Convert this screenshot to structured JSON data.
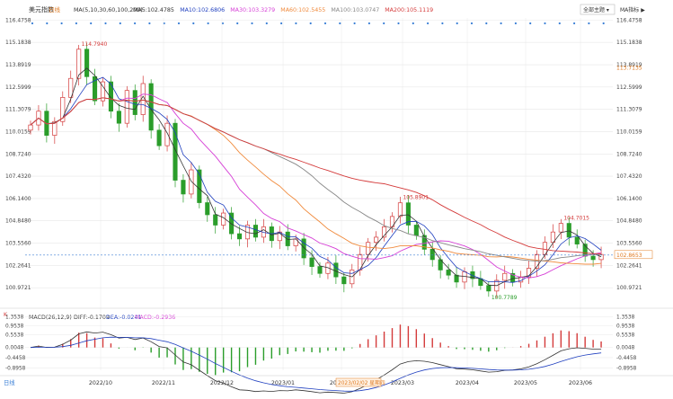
{
  "header": {
    "title": "美元指数",
    "period": "日线",
    "ma_params": "MA(5,10,30,60,100,200)",
    "ma_values": [
      {
        "label": "MA5:102.4785",
        "color": "#333333"
      },
      {
        "label": "MA10:102.6806",
        "color": "#1f3fbf"
      },
      {
        "label": "MA30:103.3279",
        "color": "#d63fd6"
      },
      {
        "label": "MA60:102.5455",
        "color": "#f08a3c"
      },
      {
        "label": "MA100:103.0747",
        "color": "#888888"
      },
      {
        "label": "MA200:105.1119",
        "color": "#d43a3a"
      }
    ],
    "dropdown": "全部主题",
    "right_label": "MA指标 ▶"
  },
  "macd_header": {
    "label": "MACD(26,12,9)",
    "diff": "DIFF:-0.1709",
    "dea": "DEA:-0.0241",
    "macd": "MACD:-0.2936"
  },
  "right_labels": {
    "current": "102.8653",
    "ma_tag": "113.7135"
  },
  "annotations": {
    "high1": "114.7940",
    "high2": "105.8901",
    "low": "100.7789",
    "high3": "104.7015"
  },
  "footer": {
    "left_tag": "日线",
    "date_tag": "2023/02/02 星期四"
  },
  "colors": {
    "up": "#d43a3a",
    "down": "#2a9d2a",
    "grid": "#e8e8e8",
    "current_line": "#3f7fd6"
  },
  "chart_data": {
    "type": "candlestick",
    "title": "美元指数",
    "x": [
      "2022/10",
      "2022/11",
      "2022/12",
      "2023/01",
      "2023/02",
      "2023/03",
      "2023/04",
      "2023/05",
      "2023/06"
    ],
    "y_ticks": [
      "116.4758",
      "115.1838",
      "113.8919",
      "112.5999",
      "111.3079",
      "110.0159",
      "108.7240",
      "107.4320",
      "106.1400",
      "104.8480",
      "103.5560",
      "102.2641",
      "100.9721"
    ],
    "ylim": [
      100.2,
      116.6
    ],
    "macd_ticks": [
      "1.3538",
      "0.9538",
      "0.5538",
      "0.0048",
      "-0.4458",
      "-0.8958"
    ],
    "series": [
      {
        "name": "K",
        "points_close": [
          110.4,
          111.2,
          109.8,
          110.6,
          112.0,
          113.1,
          114.79,
          113.2,
          111.8,
          112.9,
          111.2,
          110.5,
          112.4,
          111.0,
          112.8,
          110.1,
          109.2,
          110.5,
          107.2,
          106.4,
          107.8,
          105.9,
          105.2,
          104.6,
          105.3,
          104.1,
          103.8,
          104.6,
          103.9,
          104.5,
          103.7,
          104.2,
          103.4,
          103.8,
          102.7,
          102.2,
          101.8,
          102.4,
          101.6,
          101.2,
          102.0,
          102.9,
          103.6,
          103.9,
          104.5,
          105.1,
          105.89,
          104.6,
          104.0,
          103.2,
          102.6,
          102.0,
          101.7,
          101.3,
          101.9,
          101.5,
          101.1,
          100.78,
          101.4,
          101.8,
          101.3,
          101.6,
          102.1,
          102.9,
          103.6,
          104.2,
          104.7,
          103.9,
          103.5,
          102.8,
          102.6,
          102.9
        ]
      }
    ]
  }
}
